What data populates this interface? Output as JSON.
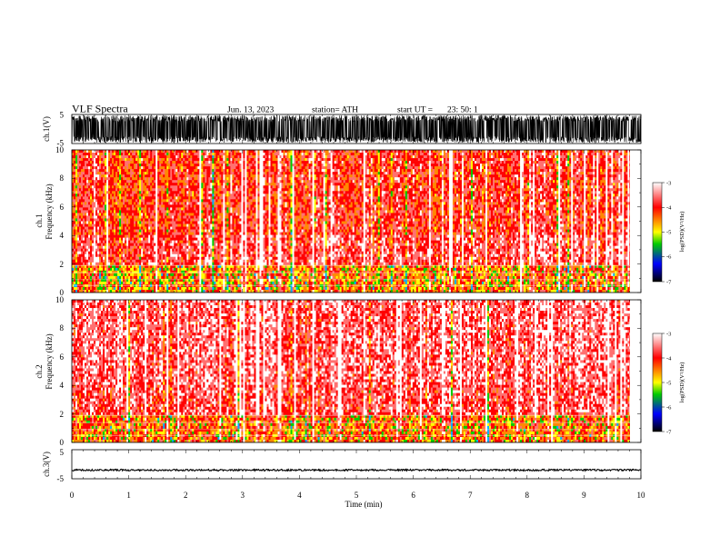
{
  "header": {
    "title": "VLF  Spectra",
    "date": "Jun. 13, 2023",
    "station": "station= ATH",
    "start_label": "start  UT  =",
    "start_value": "23: 50: 1"
  },
  "chart_data": [
    {
      "type": "line",
      "panel": "ch1-waveform",
      "ylabel": "ch.1(V)",
      "ylim": [
        -5,
        5
      ],
      "yticks": [
        "5",
        "-5"
      ],
      "xlim": [
        0,
        10
      ],
      "amplitude_range": [
        -4.7,
        4.7
      ],
      "color": "#000000"
    },
    {
      "type": "heatmap",
      "panel": "ch1-spectrogram",
      "ylabel": "Frequency  (kHz)",
      "channel_label": "ch.1",
      "ylim": [
        0,
        10
      ],
      "yticks": [
        "0",
        "2",
        "4",
        "6",
        "8",
        "10"
      ],
      "xlim": [
        0,
        9.83
      ],
      "colorbar": {
        "label": "log(PSD)(V²/Hz)",
        "range": [
          -7,
          -3
        ],
        "ticks": [
          "-3",
          "-4",
          "-5",
          "-6",
          "-7"
        ],
        "colors": [
          "#ffffff",
          "#ff0000",
          "#ffff00",
          "#00cc00",
          "#0000ff",
          "#000000"
        ]
      },
      "bands_khz": [
        {
          "from": 4,
          "to": 10,
          "level": -4.1
        },
        {
          "from": 2,
          "to": 4,
          "level": -3.9
        },
        {
          "from": 0,
          "to": 2,
          "level": -4.4
        }
      ]
    },
    {
      "type": "heatmap",
      "panel": "ch2-spectrogram",
      "ylabel": "Frequency  (kHz)",
      "channel_label": "ch.2",
      "ylim": [
        0,
        10
      ],
      "yticks": [
        "0",
        "2",
        "4",
        "6",
        "8",
        "10"
      ],
      "xlim": [
        0,
        9.83
      ],
      "colorbar": {
        "label": "log(PSD)(V²/Hz)",
        "range": [
          -7,
          -3
        ],
        "ticks": [
          "-3",
          "-4",
          "-5",
          "-6",
          "-7"
        ],
        "colors": [
          "#ffffff",
          "#ff0000",
          "#ffff00",
          "#00cc00",
          "#0000ff",
          "#000000"
        ]
      },
      "bands_khz": [
        {
          "from": 4,
          "to": 10,
          "level": -3.8
        },
        {
          "from": 2,
          "to": 4,
          "level": -3.9
        },
        {
          "from": 0,
          "to": 2,
          "level": -4.3
        }
      ]
    },
    {
      "type": "line",
      "panel": "ch3-waveform",
      "ylabel": "ch.3(V)",
      "ylim": [
        -5,
        5
      ],
      "yticks": [
        "5",
        "-5"
      ],
      "xlim": [
        0,
        10
      ],
      "amplitude_range": [
        -2.3,
        -1.7
      ],
      "color": "#000000",
      "xlabel": "Time  (min)",
      "xticks": [
        "0",
        "1",
        "2",
        "3",
        "4",
        "5",
        "6",
        "7",
        "8",
        "9",
        "10"
      ]
    }
  ]
}
